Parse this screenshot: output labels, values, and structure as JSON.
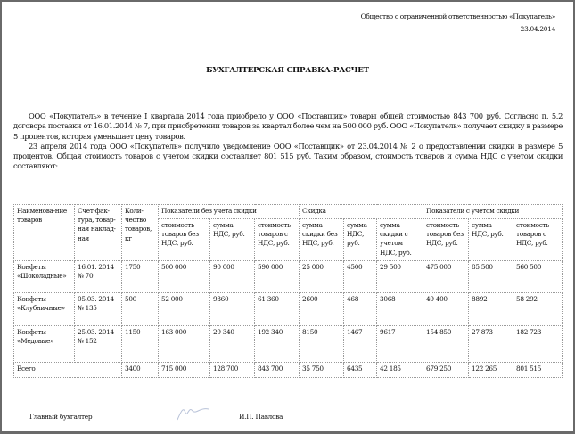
{
  "header": {
    "company": "Общество с ограниченной ответственностью «Покупатель»",
    "date": "23.04.2014"
  },
  "title": "БУХГАЛТЕРСКАЯ СПРАВКА-РАСЧЕТ",
  "paragraphs": [
    "ООО «Покупатель» в течение I квартала 2014 года приобрело у ООО «Поставщик» товары общей стоимостью 843 700 руб. Согласно п. 5.2 договора поставки от 16.01.2014 № 7, при приобретении товаров за квартал более чем на 500 000 руб. ООО «Покупатель» получает скидку в размере 5 процентов, которая уменьшает цену товаров.",
    "23 апреля 2014 года ООО «Покупатель» получило уведомление ООО «Поставщик» от 23.04.2014 № 2 о предоставлении скидки в размере 5 процентов. Общая стоимость товаров с учетом скидки составляет 801 515 руб. Таким образом, стоимость товаров и сумма НДС с учетом скидки составляют:"
  ],
  "table": {
    "head": {
      "name": "Наименова-ние товаров",
      "invoice": "Счет-фак-тура, товар-ная наклад-ная",
      "qty": "Коли-чество товаров, кг",
      "groups": [
        "Показатели без учета скидки",
        "Скидка",
        "Показатели с учетом скидки"
      ],
      "sub": [
        "стоимость товаров без НДС, руб.",
        "сумма НДС, руб.",
        "стоимость товаров с НДС, руб.",
        "сумма скидки без НДС, руб.",
        "сумма НДС, руб.",
        "сумма скидки с учетом НДС, руб.",
        "стоимость товаров без НДС, руб.",
        "сумма НДС, руб.",
        "стоимость товаров с НДС, руб."
      ]
    },
    "rows": [
      {
        "name": "Конфеты «Шоколадные»",
        "invoice": "16.01. 2014 № 70",
        "qty": "1750",
        "values": [
          "500 000",
          "90 000",
          "590 000",
          "25 000",
          "4500",
          "29 500",
          "475 000",
          "85 500",
          "560 500"
        ]
      },
      {
        "name": "Конфеты «Клубничные»",
        "invoice": "05.03. 2014 № 135",
        "qty": "500",
        "values": [
          "52 000",
          "9360",
          "61 360",
          "2600",
          "468",
          "3068",
          "49 400",
          "8892",
          "58 292"
        ]
      },
      {
        "name": "Конфеты «Медовые»",
        "invoice": "25.03. 2014 № 152",
        "qty": "1150",
        "values": [
          "163 000",
          "29 340",
          "192 340",
          "8150",
          "1467",
          "9617",
          "154 850",
          "27 873",
          "182 723"
        ]
      }
    ],
    "total": {
      "label": "Всего",
      "qty": "3400",
      "values": [
        "715 000",
        "128 700",
        "843 700",
        "35 750",
        "6435",
        "42 185",
        "679 250",
        "122 265",
        "801 515"
      ]
    }
  },
  "footer": {
    "position": "Главный бухгалтер",
    "name": "И.П. Павлова"
  }
}
